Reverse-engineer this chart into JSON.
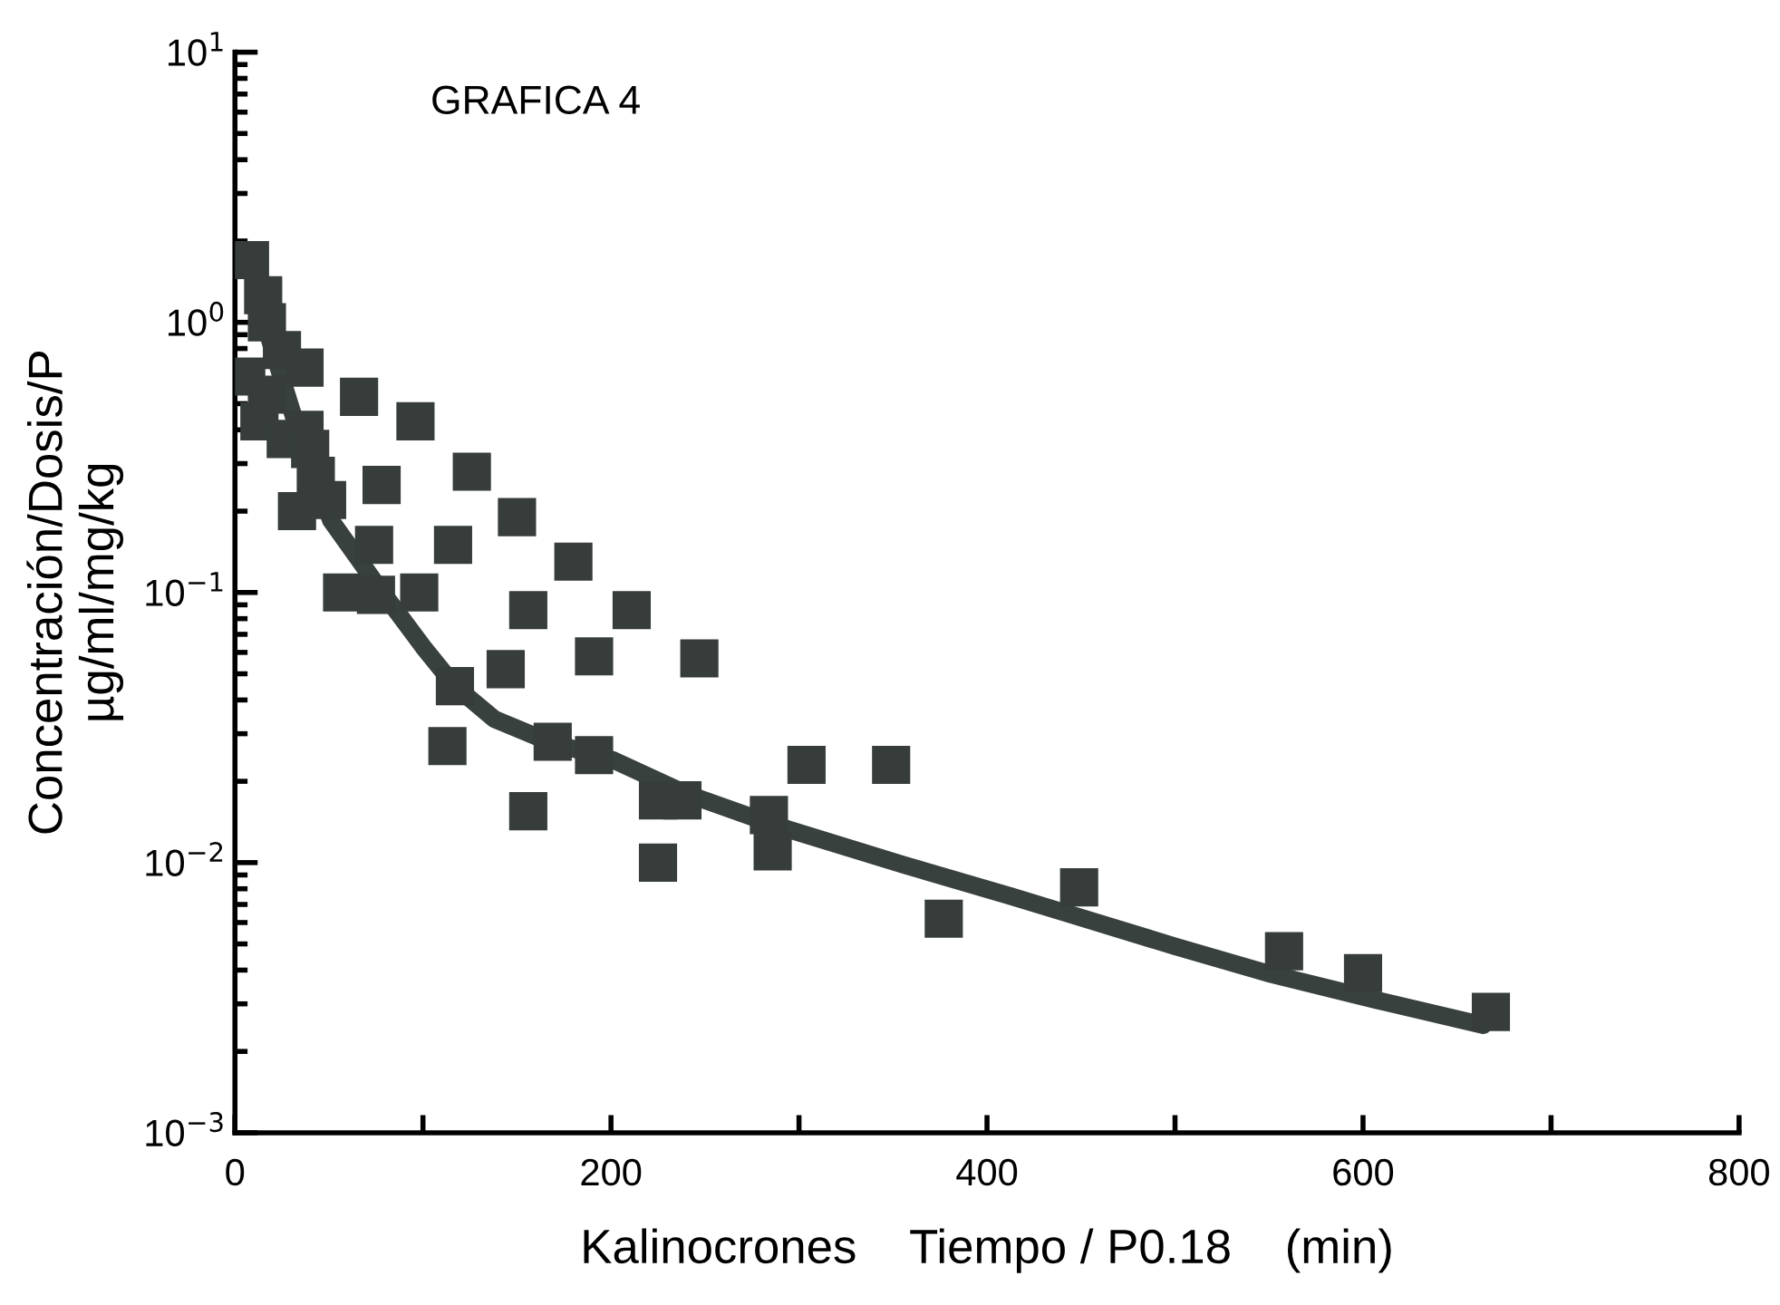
{
  "chart_data": {
    "type": "scatter",
    "title": "GRAFICA 4",
    "xlabel": "Kalinocrones    Tiempo / P0.18    (min)",
    "ylabel": "Concentración/Dosis/P\nµg/ml/mg/kg",
    "log": "y",
    "grid": false,
    "xlim": [
      0,
      800
    ],
    "xticks": [
      0,
      {
        "value": 100,
        "label": null
      },
      200,
      {
        "value": 300,
        "label": null
      },
      400,
      {
        "value": 500,
        "label": null
      },
      600,
      {
        "value": 700,
        "label": null
      },
      800
    ],
    "ylim": [
      0.001,
      10
    ],
    "yticks": [
      {
        "value": 0.001,
        "label": "10$^{−3}$"
      },
      {
        "value": 0.01,
        "label": "10$^{−2}$"
      },
      {
        "value": 0.1,
        "label": "10$^{−1}$"
      },
      {
        "value": 1,
        "label": "10$^{0}$"
      },
      {
        "value": 10,
        "label": "10$^{1}$"
      }
    ],
    "series": [
      {
        "marker": "square",
        "color": "#363d3a",
        "x": [
          8,
          6,
          15,
          17,
          20,
          25,
          37,
          13,
          17,
          27,
          37,
          40,
          43,
          33,
          49,
          66,
          96,
          78,
          126,
          150,
          74,
          116,
          180,
          57,
          98,
          75,
          156,
          211,
          117,
          144,
          191,
          247,
          113,
          169,
          191,
          156,
          225,
          238,
          225,
          304,
          349,
          284,
          286,
          377,
          449,
          558,
          600,
          668
        ],
        "values": [
          1.7,
          0.63,
          1.26,
          1.0,
          null,
          0.79,
          0.68,
          0.43,
          0.54,
          0.37,
          0.4,
          0.34,
          0.27,
          0.2,
          0.22,
          0.53,
          0.43,
          0.25,
          0.28,
          0.19,
          0.15,
          0.15,
          0.13,
          0.1,
          0.1,
          0.098,
          0.086,
          0.086,
          0.045,
          0.052,
          0.058,
          0.057,
          0.027,
          0.028,
          0.025,
          0.0155,
          0.017,
          0.017,
          0.01,
          0.023,
          0.023,
          0.015,
          0.011,
          0.0062,
          0.0081,
          0.0047,
          0.0039,
          0.0028
        ]
      },
      {
        "type": "line",
        "marker": "none",
        "color": "#39413e",
        "x": [
          8,
          17,
          32,
          42,
          51,
          75,
          100,
          117,
          138,
          167,
          201,
          240,
          288,
          356,
          413,
          500,
          549,
          607,
          664
        ],
        "values": [
          1.7,
          0.93,
          0.43,
          0.27,
          0.185,
          0.108,
          0.063,
          0.045,
          0.034,
          0.028,
          0.024,
          0.018,
          0.0137,
          0.0098,
          0.0075,
          0.0049,
          0.0039,
          0.0031,
          0.0025
        ]
      }
    ]
  }
}
